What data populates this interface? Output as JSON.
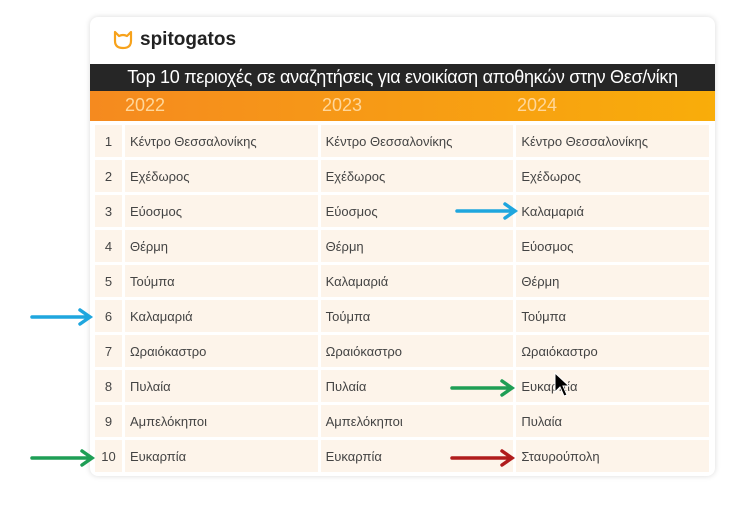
{
  "brand": "spitogatos",
  "title": "Top 10 περιοχές σε αναζητήσεις για ενοικίαση αποθηκών στην Θεσ/νίκη",
  "years": [
    "2022",
    "2023",
    "2024"
  ],
  "rows": [
    {
      "rank": "1",
      "y2022": "Κέντρο Θεσσαλονίκης",
      "y2023": "Κέντρο Θεσσαλονίκης",
      "y2024": "Κέντρο Θεσσαλονίκης"
    },
    {
      "rank": "2",
      "y2022": "Εχέδωρος",
      "y2023": "Εχέδωρος",
      "y2024": "Εχέδωρος"
    },
    {
      "rank": "3",
      "y2022": "Εύοσμος",
      "y2023": "Εύοσμος",
      "y2024": "Καλαμαριά"
    },
    {
      "rank": "4",
      "y2022": "Θέρμη",
      "y2023": "Θέρμη",
      "y2024": "Εύοσμος"
    },
    {
      "rank": "5",
      "y2022": "Τούμπα",
      "y2023": "Καλαμαριά",
      "y2024": "Θέρμη"
    },
    {
      "rank": "6",
      "y2022": "Καλαμαριά",
      "y2023": "Τούμπα",
      "y2024": "Τούμπα"
    },
    {
      "rank": "7",
      "y2022": "Ωραιόκαστρο",
      "y2023": "Ωραιόκαστρο",
      "y2024": "Ωραιόκαστρο"
    },
    {
      "rank": "8",
      "y2022": "Πυλαία",
      "y2023": "Πυλαία",
      "y2024": "Ευκαρπία"
    },
    {
      "rank": "9",
      "y2022": "Αμπελόκηποι",
      "y2023": "Αμπελόκηποι",
      "y2024": "Πυλαία"
    },
    {
      "rank": "10",
      "y2022": "Ευκαρπία",
      "y2023": "Ευκαρπία",
      "y2024": "Σταυρούπολη"
    }
  ],
  "colors": {
    "blue": "#1fa6de",
    "green": "#1e9e55",
    "red": "#b01c1c",
    "orange": "#f58a1f"
  }
}
